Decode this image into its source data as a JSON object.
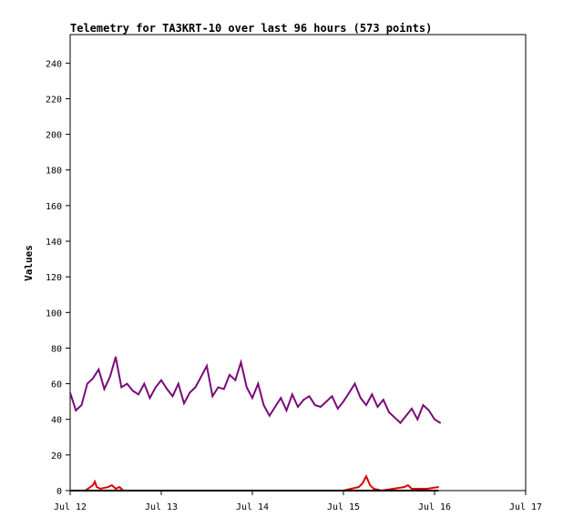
{
  "chart_data": {
    "type": "line",
    "title": "Telemetry for TA3KRT-10 over last 96 hours (573 points)",
    "xlabel": "",
    "ylabel": "Values",
    "x_ticks": [
      "Jul 12",
      "Jul 13",
      "Jul 14",
      "Jul 15",
      "Jul 16",
      "Jul 17"
    ],
    "y_ticks": [
      0,
      20,
      40,
      60,
      80,
      100,
      120,
      140,
      160,
      180,
      200,
      220,
      240
    ],
    "xlim": [
      "Jul 12 00:00",
      "Jul 17 00:00"
    ],
    "ylim": [
      0,
      256
    ],
    "grid": false,
    "series": [
      {
        "color": "#7a0a7a",
        "x_hours": [
          0,
          1.5,
          3,
          4.5,
          6,
          7.5,
          9,
          10.5,
          12,
          13.5,
          15,
          16.5,
          18,
          19.5,
          21,
          22.5,
          24,
          25.5,
          27,
          28.5,
          30,
          31.5,
          33,
          34.5,
          36,
          37.5,
          39,
          40.5,
          42,
          43.5,
          45,
          46.5,
          48,
          49.5,
          51,
          52.5,
          54,
          55.5,
          57,
          58.5,
          60,
          61.5,
          63,
          64.5,
          66,
          67.5,
          69,
          70.5,
          72,
          73.5,
          75,
          76.5,
          78,
          79.5,
          81,
          82.5,
          84,
          85.5,
          87,
          88.5,
          90,
          91.5,
          93,
          94.5,
          96,
          97.5
        ],
        "values": [
          55,
          45,
          48,
          60,
          63,
          68,
          57,
          64,
          75,
          58,
          60,
          56,
          54,
          60,
          52,
          58,
          62,
          57,
          53,
          60,
          49,
          55,
          58,
          64,
          70,
          53,
          58,
          57,
          65,
          62,
          72,
          58,
          52,
          60,
          48,
          42,
          47,
          52,
          45,
          54,
          47,
          51,
          53,
          48,
          47,
          50,
          53,
          46,
          50,
          55,
          60,
          52,
          48,
          54,
          47,
          51,
          44,
          41,
          38,
          42,
          46,
          40,
          48,
          45,
          40,
          38
        ]
      },
      {
        "color": "#e00000",
        "x_hours": [
          0,
          4,
          6,
          6.5,
          7,
          8,
          10,
          11,
          12,
          13,
          14,
          24,
          48,
          60,
          72,
          76,
          77,
          78,
          79,
          80,
          82,
          88,
          89,
          90,
          94,
          97
        ],
        "values": [
          0,
          0,
          3,
          5,
          2,
          1,
          2,
          3,
          1,
          2,
          0,
          0,
          0,
          0,
          0,
          2,
          4,
          8,
          3,
          1,
          0,
          2,
          3,
          1,
          1,
          2
        ]
      },
      {
        "color": "#000000",
        "x_hours": [
          0,
          97
        ],
        "values": [
          0,
          0
        ]
      }
    ]
  }
}
